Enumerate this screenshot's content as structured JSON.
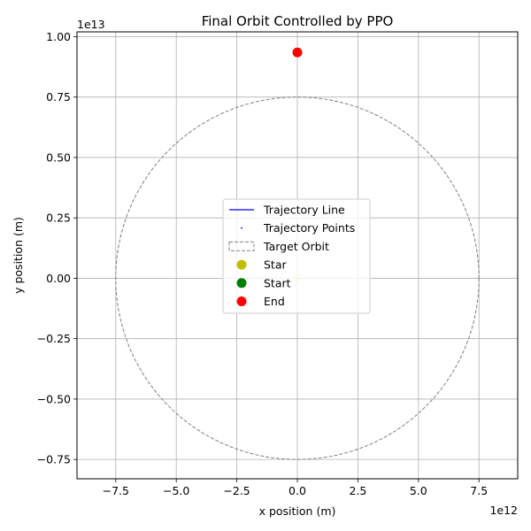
{
  "chart_data": {
    "type": "scatter",
    "title": "Final Orbit Controlled by PPO",
    "xlabel": "x position (m)",
    "ylabel": "y position (m)",
    "x_offset_text": "1e12",
    "y_offset_text": "1e13",
    "xlim": [
      -9100000000000.0,
      9100000000000.0
    ],
    "ylim": [
      -8300000000000.0,
      10200000000000.0
    ],
    "x_ticks": [
      -7500000000000.0,
      -5000000000000.0,
      -2500000000000.0,
      0,
      2500000000000.0,
      5000000000000.0,
      7500000000000.0
    ],
    "x_tick_labels": [
      "−7.5",
      "−5.0",
      "−2.5",
      "0.0",
      "2.5",
      "5.0",
      "7.5"
    ],
    "y_ticks": [
      -7500000000000.0,
      -5000000000000.0,
      -2500000000000.0,
      0,
      2500000000000.0,
      5000000000000.0,
      7500000000000.0,
      10000000000000.0
    ],
    "y_tick_labels": [
      "−0.75",
      "−0.50",
      "−0.25",
      "0.00",
      "0.25",
      "0.50",
      "0.75",
      "1.00"
    ],
    "grid": true,
    "target_orbit": {
      "radius": 7500000000000.0,
      "color": "#808080",
      "style": "dashed"
    },
    "trajectory_line": {
      "x": [],
      "y": [],
      "color": "#0000ff"
    },
    "trajectory_points": {
      "x": [],
      "y": [],
      "color": "#0000ff"
    },
    "points": [
      {
        "name": "Star",
        "x": 0,
        "y": 0,
        "color": "#bfbf00",
        "alpha": 0.2
      },
      {
        "name": "Start",
        "x": 0,
        "y": 0,
        "color": "#008000",
        "alpha": 0.0
      },
      {
        "name": "End",
        "x": 0,
        "y": 9350000000000.0,
        "color": "#ff0000",
        "alpha": 1.0
      }
    ],
    "legend": {
      "placement": "center",
      "entries": [
        {
          "label": "Trajectory Line",
          "kind": "line",
          "color": "#0000ff"
        },
        {
          "label": "Trajectory Points",
          "kind": "dot",
          "color": "#0000ff"
        },
        {
          "label": "Target Orbit",
          "kind": "dashed-box",
          "color": "#808080"
        },
        {
          "label": "Star",
          "kind": "marker",
          "color": "#bfbf00"
        },
        {
          "label": "Start",
          "kind": "marker",
          "color": "#008000"
        },
        {
          "label": "End",
          "kind": "marker",
          "color": "#ff0000"
        }
      ]
    }
  }
}
